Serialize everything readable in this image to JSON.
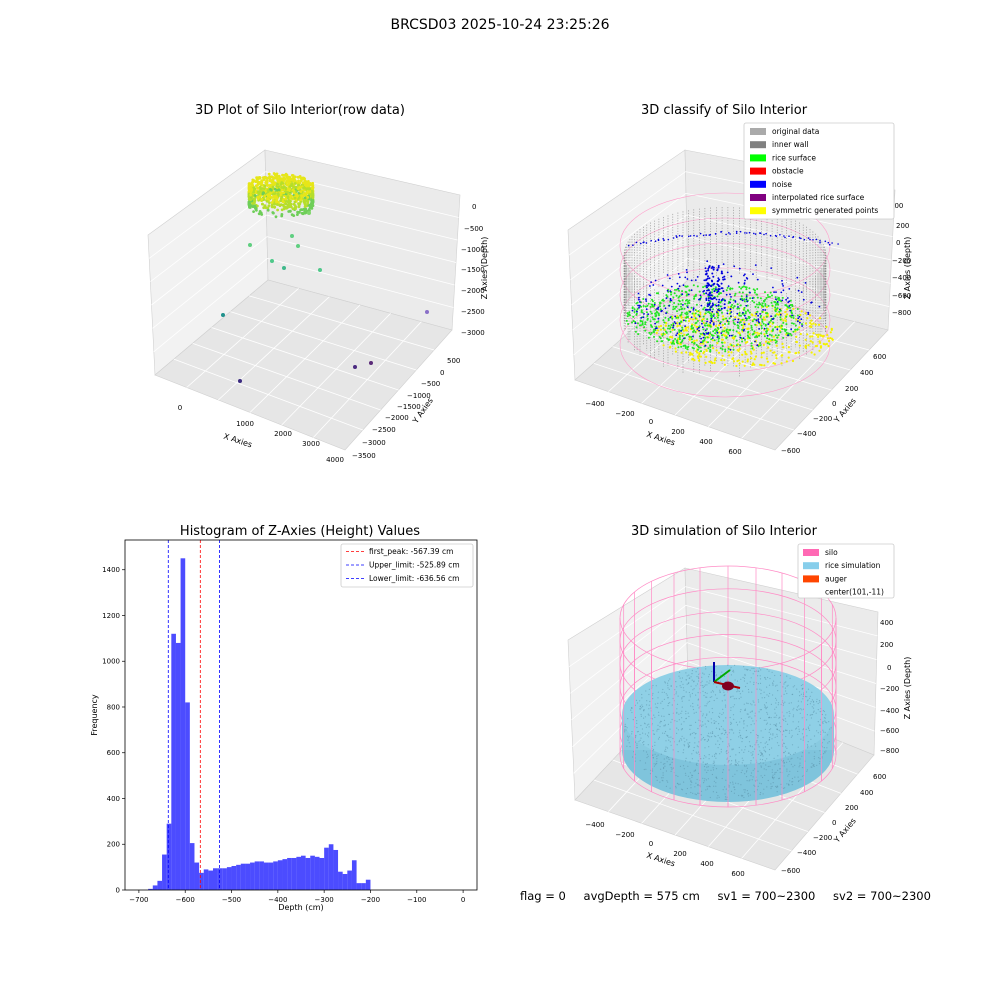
{
  "suptitle": "BRCSD03 2025-10-24 23:25:26",
  "colors": {
    "hist_bar": "#0000ff",
    "peak_line": "#ff0000",
    "limit_line": "#0000ff",
    "gray": "#aaaaaa",
    "inner_wall": "#808080",
    "rice_surface": "#00ff00",
    "obstacle": "#ff0000",
    "noise": "#0000ff",
    "interp": "#800080",
    "symmetric": "#ffff00",
    "silo": "#ff69b4",
    "rice_sim": "#87ceeb",
    "auger": "#ff4500"
  },
  "chart_data": [
    {
      "type": "scatter3d",
      "title": "3D Plot of Silo Interior(row data)",
      "xlabel": "X Axies",
      "ylabel": "Y Axies",
      "zlabel": "Z Axies (Depth)",
      "xticks": [
        "0",
        "1000",
        "2000",
        "3000",
        "4000"
      ],
      "yticks": [
        "500",
        "0",
        "−500",
        "−1000",
        "−1500",
        "−2000",
        "−2500",
        "−3000",
        "−3500"
      ],
      "zticks": [
        "0",
        "−500",
        "−1000",
        "−1500",
        "−2000",
        "−2500",
        "−3000"
      ]
    },
    {
      "type": "scatter3d",
      "title": "3D classify of Silo Interior",
      "xlabel": "X Axies",
      "ylabel": "Y Axies",
      "zlabel": "Z Axies (Depth)",
      "xticks": [
        "−400",
        "−200",
        "0",
        "200",
        "400",
        "600"
      ],
      "yticks": [
        "600",
        "400",
        "200",
        "0",
        "−200",
        "−400",
        "−600"
      ],
      "zticks": [
        "200",
        "0",
        "−200",
        "−400",
        "−600",
        "−800"
      ],
      "legend": [
        {
          "label": "original data",
          "color": "#aaaaaa"
        },
        {
          "label": "inner wall",
          "color": "#808080"
        },
        {
          "label": "rice surface",
          "color": "#00ff00"
        },
        {
          "label": "obstacle",
          "color": "#ff0000"
        },
        {
          "label": "noise",
          "color": "#0000ff"
        },
        {
          "label": "interpolated rice surface",
          "color": "#800080"
        },
        {
          "label": "symmetric generated points",
          "color": "#ffff00"
        }
      ]
    },
    {
      "type": "bar",
      "title": "Histogram of Z-Axies (Height) Values",
      "xlabel": "Depth (cm)",
      "ylabel": "Frequency",
      "xlim": [
        -730,
        30
      ],
      "ylim": [
        0,
        1530
      ],
      "xticks": [
        -700,
        -600,
        -500,
        -400,
        -300,
        -200,
        -100,
        0
      ],
      "yticks": [
        0,
        200,
        400,
        600,
        800,
        1000,
        1200,
        1400
      ],
      "bin_start": -680,
      "bin_width": 10,
      "values": [
        5,
        20,
        40,
        155,
        290,
        1120,
        1080,
        1450,
        820,
        205,
        120,
        75,
        90,
        85,
        95,
        95,
        95,
        100,
        105,
        110,
        115,
        115,
        120,
        125,
        125,
        120,
        120,
        125,
        130,
        135,
        140,
        140,
        145,
        150,
        140,
        150,
        145,
        140,
        185,
        200,
        175,
        80,
        70,
        85,
        130,
        30,
        30,
        45
      ],
      "vlines": [
        {
          "label": "first_peak: -567.39 cm",
          "x": -567.39,
          "color": "#ff0000"
        },
        {
          "label": "Upper_limit: -525.89 cm",
          "x": -525.89,
          "color": "#0000ff"
        },
        {
          "label": "Lower_limit: -636.56 cm",
          "x": -636.56,
          "color": "#0000ff"
        }
      ]
    },
    {
      "type": "surface3d",
      "title": "3D simulation of Silo Interior",
      "xlabel": "X Axies",
      "ylabel": "Y Axies",
      "zlabel": "Z Axies (Depth)",
      "xticks": [
        "−400",
        "−200",
        "0",
        "200",
        "400",
        "600"
      ],
      "yticks": [
        "600",
        "400",
        "200",
        "0",
        "−200",
        "−400",
        "−600"
      ],
      "zticks": [
        "400",
        "200",
        "0",
        "−200",
        "−400",
        "−600",
        "−800"
      ],
      "legend": [
        {
          "label": "silo",
          "color": "#ff69b4"
        },
        {
          "label": "rice simulation",
          "color": "#87ceeb"
        },
        {
          "label": "auger",
          "color": "#ff4500"
        },
        {
          "label": "center(101,-11)",
          "color": ""
        }
      ]
    }
  ],
  "status": {
    "flag": "flag = 0",
    "avg_depth": "avgDepth = 575 cm",
    "sv1": "sv1 = 700~2300",
    "sv2": "sv2 = 700~2300"
  }
}
